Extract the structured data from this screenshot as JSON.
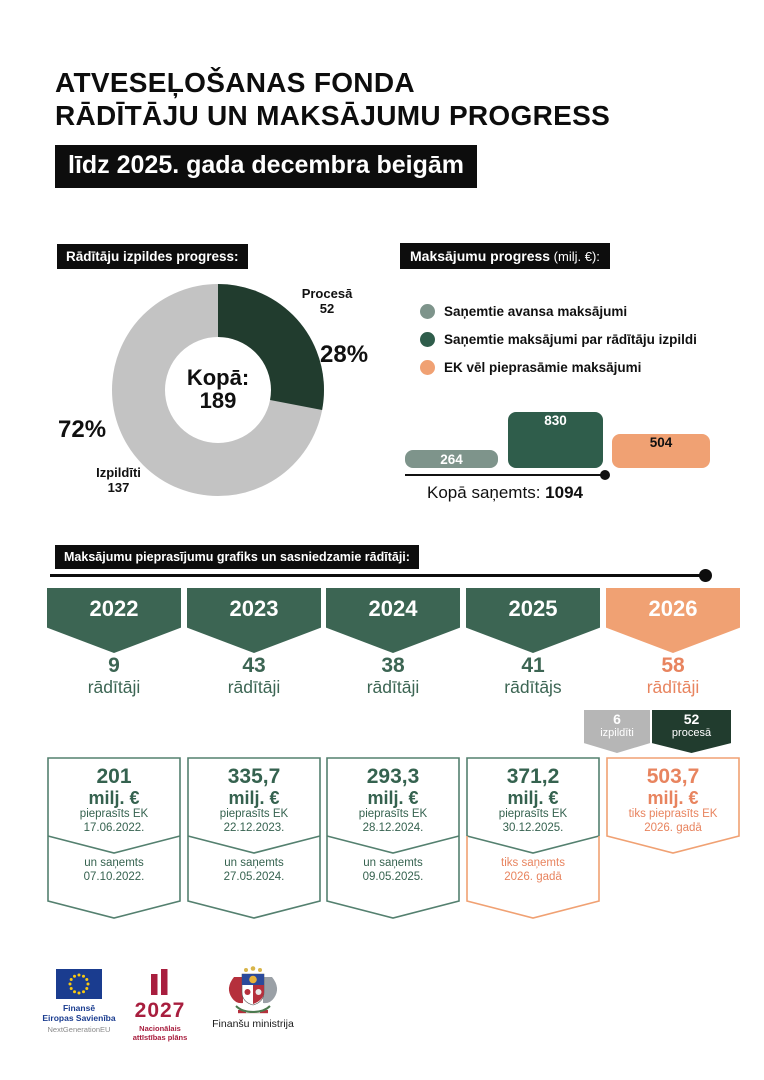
{
  "colors": {
    "ink": "#101010",
    "dark_forest": "#213c2e",
    "pennant_green": "#3c6553",
    "bar_green": "#2f5d4b",
    "sage": "#7e948b",
    "orange": "#f0a173",
    "orange_text": "#e8845f",
    "donut_gray": "#c3c3c3",
    "pennant_gray": "#b6b6b6",
    "card_green_border": "#54806f",
    "green_text": "#35624f",
    "eu_blue": "#1a3c8f",
    "star_yellow": "#f8c910",
    "crimson": "#a81e3e",
    "gray_text": "#8a8a8a"
  },
  "header": {
    "title_line1": "ATVESEĻOŠANAS FONDA",
    "title_line2": "RĀDĪTĀJU UN MAKSĀJUMU PROGRESS",
    "subtitle": "līdz 2025. gada decembra beigām"
  },
  "indicators": {
    "header": "Rādītāju izpildes progress:",
    "center_label": "Kopā:",
    "center_value": "189",
    "slice_done_label": "Izpildīti",
    "slice_done_value": "137",
    "slice_done_pct": "72%",
    "slice_progress_label": "Procesā",
    "slice_progress_value": "52",
    "slice_progress_pct": "28%"
  },
  "payments": {
    "header_bold": "Maksājumu progress",
    "header_rest": " (milj. €):",
    "legend": [
      {
        "label": "Saņemtie avansa maksājumi"
      },
      {
        "label": "Saņemtie maksājumi par rādītāju izpildi"
      },
      {
        "label": "EK vēl pieprasāmie maksājumi"
      }
    ],
    "bars": [
      {
        "value": "264"
      },
      {
        "value": "830"
      },
      {
        "value": "504"
      }
    ],
    "total_label": "Kopā saņemts:",
    "total_value": "1094"
  },
  "timeline": {
    "header": "Maksājumu pieprasījumu grafiks un sasniedzamie rādītāji:",
    "years": [
      {
        "year": "2022",
        "count": "9",
        "unit": "rādītāji"
      },
      {
        "year": "2023",
        "count": "43",
        "unit": "rādītāji"
      },
      {
        "year": "2024",
        "count": "38",
        "unit": "rādītāji"
      },
      {
        "year": "2025",
        "count": "41",
        "unit": "rādītājs"
      },
      {
        "year": "2026",
        "count": "58",
        "unit": "rādītāji"
      }
    ],
    "sub_badges": [
      {
        "value": "6",
        "label": "izpildīti"
      },
      {
        "value": "52",
        "label": "procesā"
      }
    ]
  },
  "cards": [
    {
      "amount": "201",
      "unit": "milj. €",
      "line1": "pieprasīts EK",
      "line2": "17.06.2022.",
      "s2_line1": "un saņemts",
      "s2_line2": "07.10.2022."
    },
    {
      "amount": "335,7",
      "unit": "milj. €",
      "line1": "pieprasīts EK",
      "line2": "22.12.2023.",
      "s2_line1": "un saņemts",
      "s2_line2": "27.05.2024."
    },
    {
      "amount": "293,3",
      "unit": "milj. €",
      "line1": "pieprasīts EK",
      "line2": "28.12.2024.",
      "s2_line1": "un saņemts",
      "s2_line2": "09.05.2025."
    },
    {
      "amount": "371,2",
      "unit": "milj. €",
      "line1": "pieprasīts EK",
      "line2": "30.12.2025.",
      "s2_line1": "tiks saņemts",
      "s2_line2": "2026. gadā"
    },
    {
      "amount": "503,7",
      "unit": "milj. €",
      "line1": "tiks pieprasīts EK",
      "line2": "2026. gadā"
    }
  ],
  "footer": {
    "eu_line1": "Finansē",
    "eu_line2": "Eiropas Savienība",
    "eu_line3": "NextGenerationEU",
    "nap_year": "2027",
    "nap_line1": "Nacionālais",
    "nap_line2": "attīstības plāns",
    "ministry": "Finanšu ministrija"
  },
  "chart_data": [
    {
      "type": "pie",
      "donut": true,
      "title": "Rādītāju izpildes progress",
      "labels": [
        "Izpildīti",
        "Procesā"
      ],
      "values": [
        137,
        52
      ],
      "percentages": [
        72,
        28
      ],
      "total_label": "Kopā:",
      "total": 189,
      "colors": [
        "#c3c3c3",
        "#213c2e"
      ],
      "legend_position": "around"
    },
    {
      "type": "bar",
      "title": "Maksājumu progress (milj. €)",
      "categories": [
        "Saņemtie avansa maksājumi",
        "Saņemtie maksājumi par rādītāju izpildi",
        "EK vēl pieprasāmie maksājumi"
      ],
      "values": [
        264,
        830,
        504
      ],
      "colors": [
        "#7e948b",
        "#2f5d4b",
        "#f0a173"
      ],
      "ylim": [
        0,
        830
      ],
      "grid": false,
      "total": 1094
    }
  ]
}
